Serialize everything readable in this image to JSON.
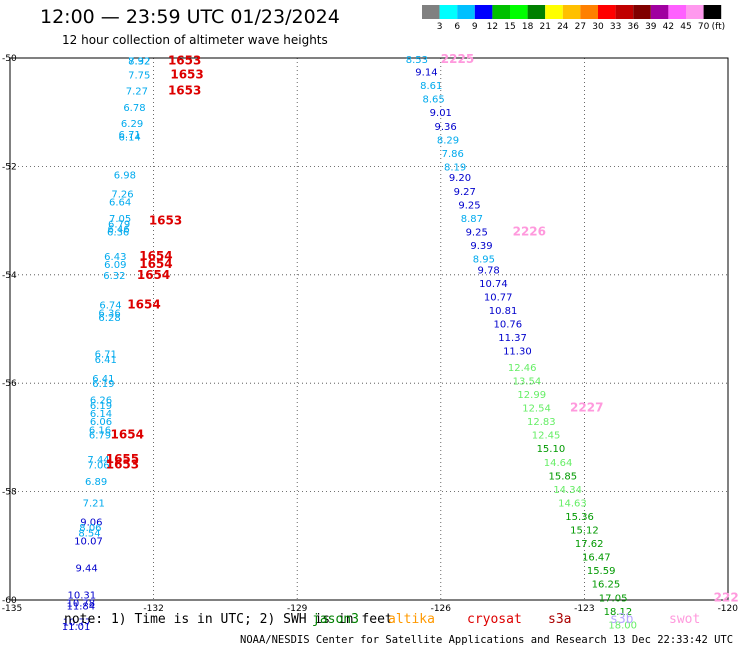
{
  "header": {
    "title": "12:00 — 23:59 UTC 01/23/2024",
    "subtitle": "12 hour collection of altimeter wave heights"
  },
  "colorbar": {
    "labels": [
      "3",
      "6",
      "9",
      "12",
      "15",
      "18",
      "21",
      "24",
      "27",
      "30",
      "33",
      "36",
      "39",
      "42",
      "45",
      "70",
      "(ft)"
    ],
    "colors": [
      "#808080",
      "#00ffff",
      "#00c0ff",
      "#0000ff",
      "#00c000",
      "#00ff00",
      "#008000",
      "#ffff00",
      "#ffc000",
      "#ff8000",
      "#ff0000",
      "#c00000",
      "#800000",
      "#a000a0",
      "#ff60ff",
      "#ff99ee",
      "#000000"
    ]
  },
  "footer": {
    "note": "note: 1) Time is in UTC; 2) SWH is in feet",
    "credit": "NOAA/NESDIS Center for Satellite Applications and Research   13 Dec 22:33:42 UTC 2024",
    "satellites": [
      {
        "name": "jason3",
        "color": "#008000"
      },
      {
        "name": "altika",
        "color": "#ff9900"
      },
      {
        "name": "cryosat",
        "color": "#dd0000"
      },
      {
        "name": "s3a",
        "color": "#aa0000"
      },
      {
        "name": "s3b",
        "color": "#b8a8ff"
      },
      {
        "name": "swot",
        "color": "#ff99dd"
      }
    ]
  },
  "chart_data": {
    "type": "scatter",
    "xlim": [
      -135,
      -120
    ],
    "ylim": [
      -60,
      -50
    ],
    "x_ticks": [
      "-135",
      "-132",
      "-129",
      "-126",
      "-123",
      "-120"
    ],
    "y_ticks": [
      "-50",
      "-52",
      "-54",
      "-56",
      "-58",
      "-60"
    ],
    "grid": true,
    "points": [
      {
        "lon": -132.3,
        "lat": -50.05,
        "v": "7.92",
        "c": "#00aaee"
      },
      {
        "lon": -132.3,
        "lat": -50.05,
        "v": "8.32",
        "c": "#00aaee"
      },
      {
        "lon": -132.3,
        "lat": -50.3,
        "v": "7.75",
        "c": "#00aaee"
      },
      {
        "lon": -132.35,
        "lat": -50.6,
        "v": "7.27",
        "c": "#00aaee"
      },
      {
        "lon": -132.4,
        "lat": -50.9,
        "v": "6.78",
        "c": "#00aaee"
      },
      {
        "lon": -132.45,
        "lat": -51.2,
        "v": "6.29",
        "c": "#00aaee"
      },
      {
        "lon": -132.5,
        "lat": -51.4,
        "v": "6.71",
        "c": "#00aaee"
      },
      {
        "lon": -132.5,
        "lat": -51.45,
        "v": "6.14",
        "c": "#00aaee"
      },
      {
        "lon": -132.6,
        "lat": -52.15,
        "v": "6.98",
        "c": "#00aaee"
      },
      {
        "lon": -132.65,
        "lat": -52.5,
        "v": "7.26",
        "c": "#00aaee"
      },
      {
        "lon": -132.7,
        "lat": -52.65,
        "v": "6.64",
        "c": "#00aaee"
      },
      {
        "lon": -132.7,
        "lat": -52.95,
        "v": "7.05",
        "c": "#00aaee"
      },
      {
        "lon": -132.72,
        "lat": -53.05,
        "v": "6.79",
        "c": "#00aaee"
      },
      {
        "lon": -132.73,
        "lat": -53.15,
        "v": "6.46",
        "c": "#00aaee"
      },
      {
        "lon": -132.74,
        "lat": -53.2,
        "v": "6.36",
        "c": "#00aaee"
      },
      {
        "lon": -132.8,
        "lat": -53.65,
        "v": "6.43",
        "c": "#00aaee"
      },
      {
        "lon": -132.8,
        "lat": -53.8,
        "v": "6.09",
        "c": "#00aaee"
      },
      {
        "lon": -132.82,
        "lat": -54.0,
        "v": "6.32",
        "c": "#00aaee"
      },
      {
        "lon": -132.9,
        "lat": -54.55,
        "v": "6.74",
        "c": "#00aaee"
      },
      {
        "lon": -132.92,
        "lat": -54.7,
        "v": "6.36",
        "c": "#00aaee"
      },
      {
        "lon": -132.92,
        "lat": -54.78,
        "v": "6.28",
        "c": "#00aaee"
      },
      {
        "lon": -133.0,
        "lat": -55.45,
        "v": "6.71",
        "c": "#00aaee"
      },
      {
        "lon": -133.0,
        "lat": -55.55,
        "v": "6.41",
        "c": "#00aaee"
      },
      {
        "lon": -133.05,
        "lat": -55.9,
        "v": "6.41",
        "c": "#00aaee"
      },
      {
        "lon": -133.05,
        "lat": -56.0,
        "v": "6.19",
        "c": "#00aaee"
      },
      {
        "lon": -133.1,
        "lat": -56.3,
        "v": "6.26",
        "c": "#00aaee"
      },
      {
        "lon": -133.1,
        "lat": -56.4,
        "v": "6.19",
        "c": "#00aaee"
      },
      {
        "lon": -133.1,
        "lat": -56.55,
        "v": "6.14",
        "c": "#00aaee"
      },
      {
        "lon": -133.1,
        "lat": -56.7,
        "v": "6.06",
        "c": "#00aaee"
      },
      {
        "lon": -133.12,
        "lat": -56.85,
        "v": "6.16",
        "c": "#00aaee"
      },
      {
        "lon": -133.12,
        "lat": -56.95,
        "v": "6.79",
        "c": "#00aaee"
      },
      {
        "lon": -133.15,
        "lat": -57.4,
        "v": "7.44",
        "c": "#00aaee"
      },
      {
        "lon": -133.15,
        "lat": -57.5,
        "v": "7.06",
        "c": "#00aaee"
      },
      {
        "lon": -133.2,
        "lat": -57.8,
        "v": "6.89",
        "c": "#00aaee"
      },
      {
        "lon": -133.25,
        "lat": -58.2,
        "v": "7.21",
        "c": "#00aaee"
      },
      {
        "lon": -133.3,
        "lat": -58.55,
        "v": "9.06",
        "c": "#0000cc"
      },
      {
        "lon": -133.32,
        "lat": -58.65,
        "v": "8.06",
        "c": "#00aaee"
      },
      {
        "lon": -133.34,
        "lat": -58.75,
        "v": "8.54",
        "c": "#00aaee"
      },
      {
        "lon": -133.36,
        "lat": -58.9,
        "v": "10.07",
        "c": "#0000cc"
      },
      {
        "lon": -133.4,
        "lat": -59.4,
        "v": "9.44",
        "c": "#0000cc"
      },
      {
        "lon": -133.5,
        "lat": -59.9,
        "v": "10.31",
        "c": "#0000cc"
      },
      {
        "lon": -133.52,
        "lat": -60.05,
        "v": "10.78",
        "c": "#0000cc"
      },
      {
        "lon": -133.52,
        "lat": -60.1,
        "v": "11.84",
        "c": "#0000cc"
      },
      {
        "lon": -133.6,
        "lat": -60.4,
        "v": "10.77",
        "c": "#0000cc"
      },
      {
        "lon": -133.62,
        "lat": -60.48,
        "v": "11.01",
        "c": "#0000cc"
      },
      {
        "lon": -126.5,
        "lat": -50.02,
        "v": "8.53",
        "c": "#00aaee"
      },
      {
        "lon": -126.3,
        "lat": -50.25,
        "v": "9.14",
        "c": "#0000cc"
      },
      {
        "lon": -126.2,
        "lat": -50.5,
        "v": "8.61",
        "c": "#00aaee"
      },
      {
        "lon": -126.15,
        "lat": -50.75,
        "v": "8.65",
        "c": "#00aaee"
      },
      {
        "lon": -126.0,
        "lat": -51.0,
        "v": "9.01",
        "c": "#0000cc"
      },
      {
        "lon": -125.9,
        "lat": -51.25,
        "v": "9.36",
        "c": "#0000cc"
      },
      {
        "lon": -125.85,
        "lat": -51.5,
        "v": "8.29",
        "c": "#00aaee"
      },
      {
        "lon": -125.75,
        "lat": -51.75,
        "v": "7.86",
        "c": "#00aaee"
      },
      {
        "lon": -125.7,
        "lat": -52.0,
        "v": "8.19",
        "c": "#00aaee"
      },
      {
        "lon": -125.6,
        "lat": -52.2,
        "v": "9.20",
        "c": "#0000cc"
      },
      {
        "lon": -125.5,
        "lat": -52.45,
        "v": "9.27",
        "c": "#0000cc"
      },
      {
        "lon": -125.4,
        "lat": -52.7,
        "v": "9.25",
        "c": "#0000cc"
      },
      {
        "lon": -125.35,
        "lat": -52.95,
        "v": "8.87",
        "c": "#00aaee"
      },
      {
        "lon": -125.25,
        "lat": -53.2,
        "v": "9.25",
        "c": "#0000cc"
      },
      {
        "lon": -125.15,
        "lat": -53.45,
        "v": "9.39",
        "c": "#0000cc"
      },
      {
        "lon": -125.1,
        "lat": -53.7,
        "v": "8.95",
        "c": "#00aaee"
      },
      {
        "lon": -125.0,
        "lat": -53.9,
        "v": "9.78",
        "c": "#0000cc"
      },
      {
        "lon": -124.9,
        "lat": -54.15,
        "v": "10.74",
        "c": "#0000cc"
      },
      {
        "lon": -124.8,
        "lat": -54.4,
        "v": "10.77",
        "c": "#0000cc"
      },
      {
        "lon": -124.7,
        "lat": -54.65,
        "v": "10.81",
        "c": "#0000cc"
      },
      {
        "lon": -124.6,
        "lat": -54.9,
        "v": "10.76",
        "c": "#0000cc"
      },
      {
        "lon": -124.5,
        "lat": -55.15,
        "v": "11.37",
        "c": "#0000cc"
      },
      {
        "lon": -124.4,
        "lat": -55.4,
        "v": "11.30",
        "c": "#0000cc"
      },
      {
        "lon": -124.3,
        "lat": -55.7,
        "v": "12.46",
        "c": "#66ee66"
      },
      {
        "lon": -124.2,
        "lat": -55.95,
        "v": "13.54",
        "c": "#66ee66"
      },
      {
        "lon": -124.1,
        "lat": -56.2,
        "v": "12.99",
        "c": "#66ee66"
      },
      {
        "lon": -124.0,
        "lat": -56.45,
        "v": "12.54",
        "c": "#66ee66"
      },
      {
        "lon": -123.9,
        "lat": -56.7,
        "v": "12.83",
        "c": "#66ee66"
      },
      {
        "lon": -123.8,
        "lat": -56.95,
        "v": "12.45",
        "c": "#66ee66"
      },
      {
        "lon": -123.7,
        "lat": -57.2,
        "v": "15.10",
        "c": "#009900"
      },
      {
        "lon": -123.55,
        "lat": -57.45,
        "v": "14.64",
        "c": "#66ee66"
      },
      {
        "lon": -123.45,
        "lat": -57.7,
        "v": "15.85",
        "c": "#009900"
      },
      {
        "lon": -123.35,
        "lat": -57.95,
        "v": "14.34",
        "c": "#66ee66"
      },
      {
        "lon": -123.25,
        "lat": -58.2,
        "v": "14.63",
        "c": "#66ee66"
      },
      {
        "lon": -123.1,
        "lat": -58.45,
        "v": "15.36",
        "c": "#009900"
      },
      {
        "lon": -123.0,
        "lat": -58.7,
        "v": "15.12",
        "c": "#009900"
      },
      {
        "lon": -122.9,
        "lat": -58.95,
        "v": "17.62",
        "c": "#009900"
      },
      {
        "lon": -122.75,
        "lat": -59.2,
        "v": "16.47",
        "c": "#009900"
      },
      {
        "lon": -122.65,
        "lat": -59.45,
        "v": "15.59",
        "c": "#009900"
      },
      {
        "lon": -122.55,
        "lat": -59.7,
        "v": "16.25",
        "c": "#009900"
      },
      {
        "lon": -122.4,
        "lat": -59.95,
        "v": "17.05",
        "c": "#009900"
      },
      {
        "lon": -122.3,
        "lat": -60.2,
        "v": "18.12",
        "c": "#009900"
      },
      {
        "lon": -122.2,
        "lat": -60.45,
        "v": "18.00",
        "c": "#66ee66"
      }
    ],
    "passes": [
      {
        "lon": -131.7,
        "lat": -50.05,
        "label": "1653",
        "c": "#dd0000"
      },
      {
        "lon": -131.65,
        "lat": -50.3,
        "label": "1653",
        "c": "#dd0000"
      },
      {
        "lon": -131.7,
        "lat": -50.6,
        "label": "1653",
        "c": "#dd0000"
      },
      {
        "lon": -132.1,
        "lat": -53.0,
        "label": "1653",
        "c": "#dd0000"
      },
      {
        "lon": -132.3,
        "lat": -53.65,
        "label": "1654",
        "c": "#dd0000"
      },
      {
        "lon": -132.3,
        "lat": -53.8,
        "label": "1654",
        "c": "#dd0000"
      },
      {
        "lon": -132.35,
        "lat": -54.0,
        "label": "1654",
        "c": "#dd0000"
      },
      {
        "lon": -132.55,
        "lat": -54.55,
        "label": "1654",
        "c": "#dd0000"
      },
      {
        "lon": -132.9,
        "lat": -56.95,
        "label": "1654",
        "c": "#dd0000"
      },
      {
        "lon": -133.0,
        "lat": -57.4,
        "label": "1655",
        "c": "#dd0000"
      },
      {
        "lon": -133.0,
        "lat": -57.5,
        "label": "1653",
        "c": "#dd0000"
      },
      {
        "lon": -126.0,
        "lat": -50.02,
        "label": "2225",
        "c": "#ff99dd"
      },
      {
        "lon": -124.5,
        "lat": -53.2,
        "label": "2226",
        "c": "#ff99dd"
      },
      {
        "lon": -123.3,
        "lat": -56.45,
        "label": "2227",
        "c": "#ff99dd"
      },
      {
        "lon": -120.3,
        "lat": -59.95,
        "label": "222",
        "c": "#ff99dd"
      }
    ]
  }
}
